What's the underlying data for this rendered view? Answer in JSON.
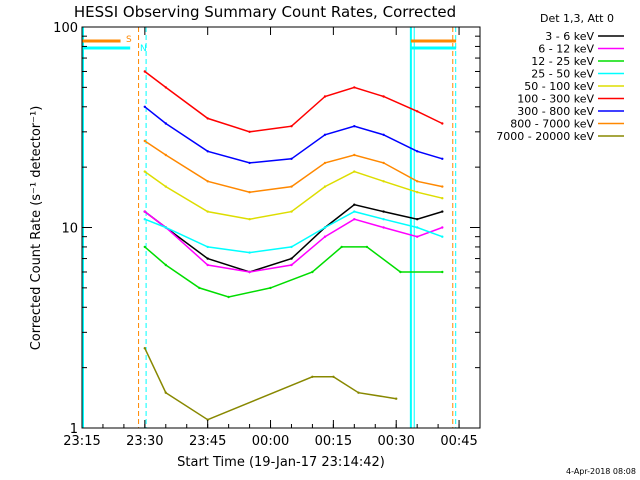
{
  "chart_data": {
    "type": "line",
    "title": "HESSI Observing Summary Count Rates, Corrected",
    "xlabel": "Start Time (19-Jan-17 23:14:42)",
    "ylabel": "Corrected Count Rate (s⁻¹ detector⁻¹)",
    "x_unit": "minutes since 23:15",
    "xlim": [
      0,
      95
    ],
    "ylim": [
      1,
      100
    ],
    "y_scale": "log",
    "x_ticks": [
      {
        "value": 0,
        "label": "23:15"
      },
      {
        "value": 15,
        "label": "23:30"
      },
      {
        "value": 30,
        "label": "23:45"
      },
      {
        "value": 45,
        "label": "00:00"
      },
      {
        "value": 60,
        "label": "00:15"
      },
      {
        "value": 75,
        "label": "00:30"
      },
      {
        "value": 90,
        "label": "00:45"
      }
    ],
    "y_ticks": [
      {
        "value": 1,
        "label": "1"
      },
      {
        "value": 10,
        "label": "10"
      },
      {
        "value": 100,
        "label": "100"
      }
    ],
    "legend_title": "Det 1,3, Att 0",
    "legend_position": "top-right",
    "series": [
      {
        "name": "3 - 6 keV",
        "color": "#000000",
        "points": [
          [
            15,
            12
          ],
          [
            20,
            10
          ],
          [
            30,
            7
          ],
          [
            40,
            6
          ],
          [
            50,
            7
          ],
          [
            58,
            10
          ],
          [
            65,
            13
          ],
          [
            72,
            12
          ],
          [
            80,
            11
          ],
          [
            86,
            12
          ]
        ]
      },
      {
        "name": "6 - 12 keV",
        "color": "#ff00ff",
        "points": [
          [
            15,
            12
          ],
          [
            20,
            10
          ],
          [
            30,
            6.5
          ],
          [
            40,
            6
          ],
          [
            50,
            6.5
          ],
          [
            58,
            9
          ],
          [
            65,
            11
          ],
          [
            72,
            10
          ],
          [
            80,
            9
          ],
          [
            86,
            10
          ]
        ]
      },
      {
        "name": "12 - 25 keV",
        "color": "#00dd00",
        "points": [
          [
            15,
            8
          ],
          [
            20,
            6.5
          ],
          [
            28,
            5
          ],
          [
            35,
            4.5
          ],
          [
            45,
            5
          ],
          [
            55,
            6
          ],
          [
            62,
            8
          ],
          [
            68,
            8
          ],
          [
            76,
            6
          ],
          [
            86,
            6
          ]
        ]
      },
      {
        "name": "25 - 50 keV",
        "color": "#00ffff",
        "points": [
          [
            15,
            11
          ],
          [
            20,
            10
          ],
          [
            30,
            8
          ],
          [
            40,
            7.5
          ],
          [
            50,
            8
          ],
          [
            58,
            10
          ],
          [
            65,
            12
          ],
          [
            72,
            11
          ],
          [
            80,
            10
          ],
          [
            86,
            9
          ]
        ]
      },
      {
        "name": "50 - 100 keV",
        "color": "#dddd00",
        "points": [
          [
            15,
            19
          ],
          [
            20,
            16
          ],
          [
            30,
            12
          ],
          [
            40,
            11
          ],
          [
            50,
            12
          ],
          [
            58,
            16
          ],
          [
            65,
            19
          ],
          [
            72,
            17
          ],
          [
            80,
            15
          ],
          [
            86,
            14
          ]
        ]
      },
      {
        "name": "100 - 300 keV",
        "color": "#ff0000",
        "points": [
          [
            15,
            60
          ],
          [
            20,
            50
          ],
          [
            30,
            35
          ],
          [
            40,
            30
          ],
          [
            50,
            32
          ],
          [
            58,
            45
          ],
          [
            65,
            50
          ],
          [
            72,
            45
          ],
          [
            80,
            38
          ],
          [
            86,
            33
          ]
        ]
      },
      {
        "name": "300 - 800 keV",
        "color": "#0000ff",
        "points": [
          [
            15,
            40
          ],
          [
            20,
            33
          ],
          [
            30,
            24
          ],
          [
            40,
            21
          ],
          [
            50,
            22
          ],
          [
            58,
            29
          ],
          [
            65,
            32
          ],
          [
            72,
            29
          ],
          [
            80,
            24
          ],
          [
            86,
            22
          ]
        ]
      },
      {
        "name": "800 - 7000 keV",
        "color": "#ff8800",
        "points": [
          [
            15,
            27
          ],
          [
            20,
            23
          ],
          [
            30,
            17
          ],
          [
            40,
            15
          ],
          [
            50,
            16
          ],
          [
            58,
            21
          ],
          [
            65,
            23
          ],
          [
            72,
            21
          ],
          [
            80,
            17
          ],
          [
            86,
            16
          ]
        ]
      },
      {
        "name": "7000 - 20000 keV",
        "color": "#888800",
        "points": [
          [
            15,
            2.5
          ],
          [
            20,
            1.5
          ],
          [
            30,
            1.1
          ],
          [
            55,
            1.8
          ],
          [
            60,
            1.8
          ],
          [
            66,
            1.5
          ],
          [
            75,
            1.4
          ]
        ]
      }
    ],
    "annotations": [
      {
        "text": "S",
        "color": "#ff8800"
      },
      {
        "text": "N",
        "color": "#00ffff"
      }
    ],
    "footer": "4-Apr-2018 08:08"
  }
}
